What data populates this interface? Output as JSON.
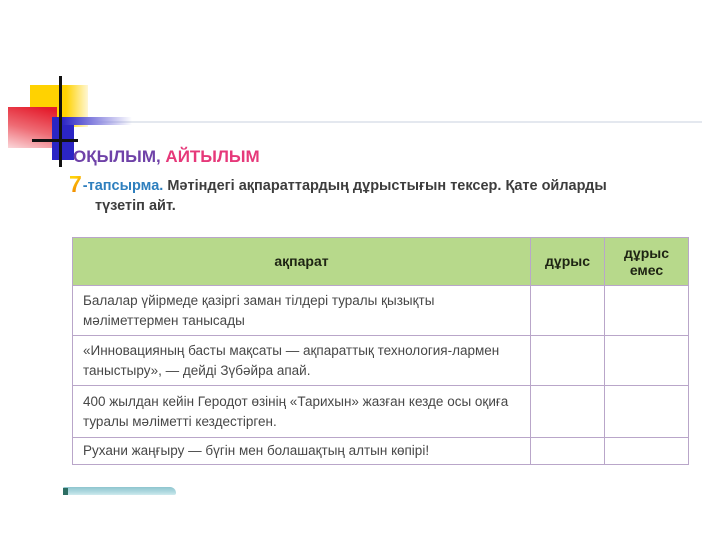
{
  "heading": {
    "part1": "ОҚЫЛЫМ,",
    "part2": " АЙТЫЛЫМ"
  },
  "task": {
    "number": "7",
    "label": "-тапсырма.",
    "lines": [
      "Мәтіндегі ақпараттардың дұрыстығын тексер. Қате ойларды",
      "түзетіп айт."
    ]
  },
  "table": {
    "headers": [
      "ақпарат",
      "дұрыс",
      "дұрыс емес"
    ],
    "rows": [
      "Балалар үйірмеде қазіргі заман тілдері туралы қызықты мәліметтермен танысады",
      "«Инновацияның басты мақсаты — ақпараттық технология-лармен таныстыру», — дейді Зүбәйра апай.",
      "400 жылдан кейін Геродот өзінің «Тарихын» жазған кезде осы оқиға туралы мәліметті кездестірген.",
      "Рухани жаңғыру — бүгін мен болашақтың алтын көпірі!"
    ]
  },
  "colors": {
    "heading_purple": "#6f42a8",
    "heading_pink": "#e6397a",
    "task_number_orange": "#f59a10",
    "task_label_blue": "#2e7fbe",
    "table_header_green": "#b7d98b",
    "table_border_lavender": "#b9a6c9",
    "deco_yellow": "#ffd201",
    "deco_red": "#e41c2c",
    "deco_blue": "#2b25c4",
    "teal_bar": "#b6dde3"
  }
}
